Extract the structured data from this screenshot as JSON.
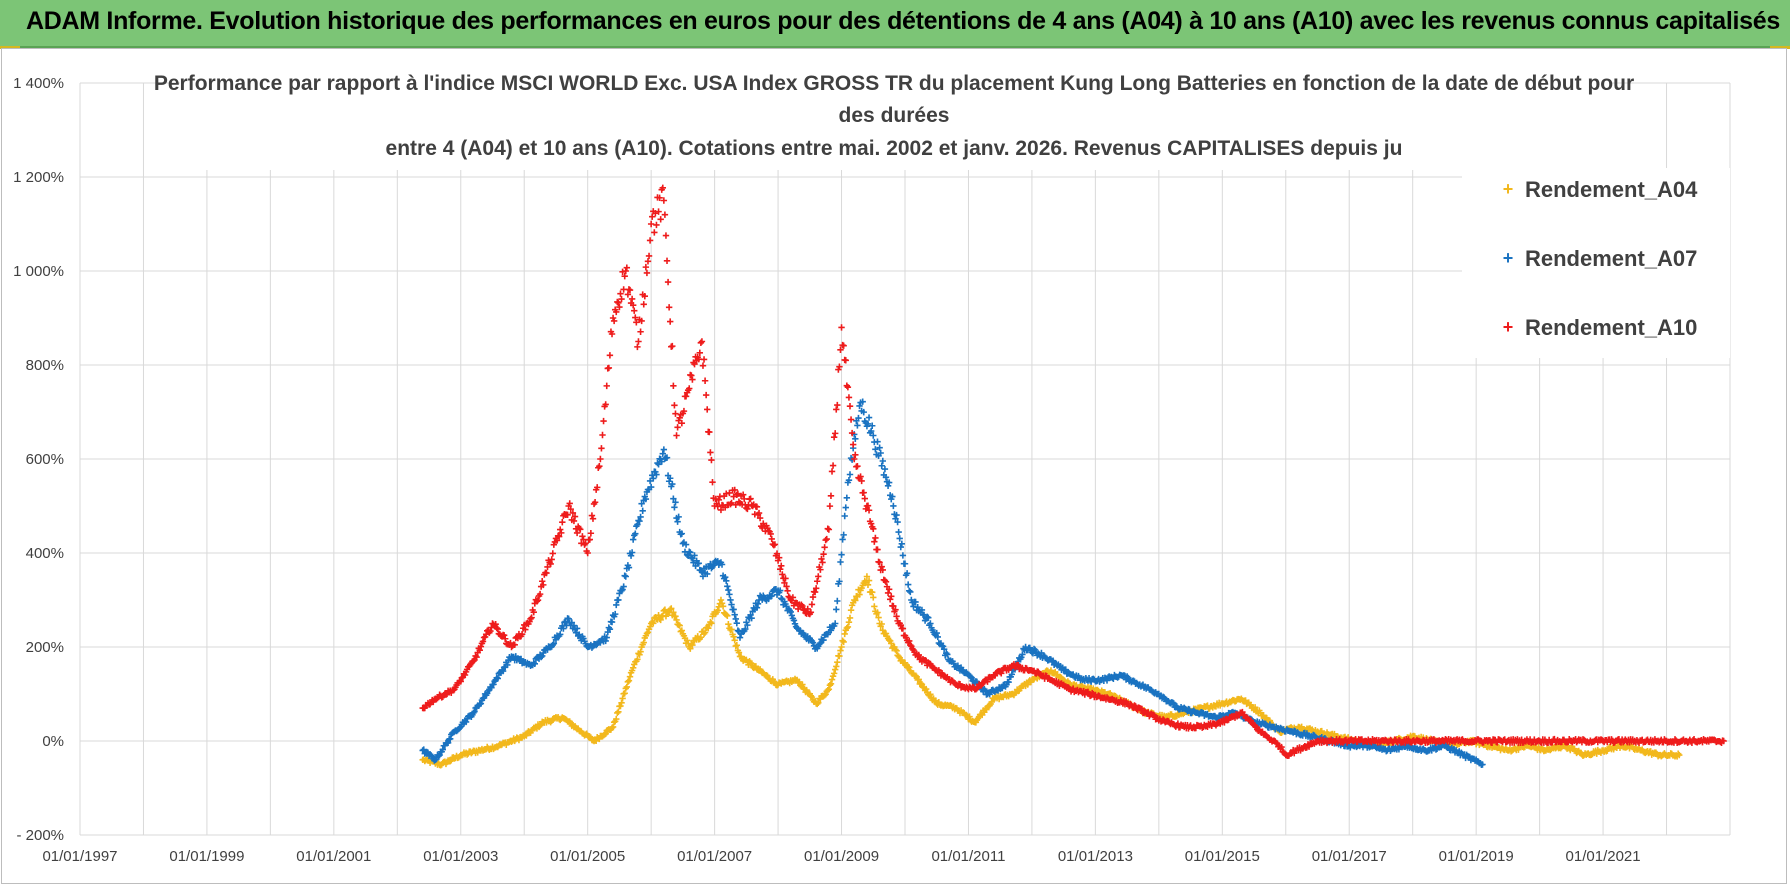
{
  "banner": {
    "title": "ADAM Informe. Evolution historique des performances en euros pour des détentions de 4 ans (A04) à 10 ans (A10) avec les revenus connus capitalisés"
  },
  "colors": {
    "banner_bg": "#7cc576",
    "A04": "#f2b81d",
    "A07": "#1a73c1",
    "A10": "#ee1c1c",
    "grid": "#d9d9d9"
  },
  "chart_data": {
    "type": "scatter",
    "title_lines": [
      "Performance par rapport à l'indice MSCI WORLD Exc. USA Index GROSS TR  du placement Kung Long Batteries  en fonction de la date de début pour",
      "des durées",
      "entre 4 (A04) et 10 ans (A10). Cotations entre mai. 2002 et janv. 2026. Revenus CAPITALISES depuis ju"
    ],
    "xlabel": "",
    "ylabel": "",
    "x_range": [
      "1997-01-01",
      "2023-01-01"
    ],
    "ylim": [
      -200,
      1400
    ],
    "y_ticks": [
      {
        "value": -200,
        "label": "- 200%"
      },
      {
        "value": 0,
        "label": "0%"
      },
      {
        "value": 200,
        "label": "200%"
      },
      {
        "value": 400,
        "label": "400%"
      },
      {
        "value": 600,
        "label": "600%"
      },
      {
        "value": 800,
        "label": "800%"
      },
      {
        "value": 1000,
        "label": "1 000%"
      },
      {
        "value": 1200,
        "label": "1 200%"
      },
      {
        "value": 1400,
        "label": "1 400%"
      }
    ],
    "x_ticks": [
      {
        "value": 1997,
        "label": "01/01/1997"
      },
      {
        "value": 1999,
        "label": "01/01/1999"
      },
      {
        "value": 2001,
        "label": "01/01/2001"
      },
      {
        "value": 2003,
        "label": "01/01/2003"
      },
      {
        "value": 2005,
        "label": "01/01/2005"
      },
      {
        "value": 2007,
        "label": "01/01/2007"
      },
      {
        "value": 2009,
        "label": "01/01/2009"
      },
      {
        "value": 2011,
        "label": "01/01/2011"
      },
      {
        "value": 2013,
        "label": "01/01/2013"
      },
      {
        "value": 2015,
        "label": "01/01/2015"
      },
      {
        "value": 2017,
        "label": "01/01/2017"
      },
      {
        "value": 2019,
        "label": "01/01/2019"
      },
      {
        "value": 2021,
        "label": "01/01/2021"
      }
    ],
    "x_minor_gridlines": [
      1998,
      2000,
      2002,
      2004,
      2006,
      2008,
      2010,
      2012,
      2014,
      2016,
      2018,
      2020,
      2022
    ],
    "legend_position": "top-right",
    "series": [
      {
        "name": "Rendement_A04",
        "color": "#f2b81d",
        "x": [
          2002.4,
          2002.7,
          2003.0,
          2003.3,
          2003.6,
          2004.0,
          2004.3,
          2004.6,
          2004.9,
          2005.1,
          2005.4,
          2005.7,
          2006.0,
          2006.3,
          2006.6,
          2006.9,
          2007.1,
          2007.4,
          2007.7,
          2008.0,
          2008.3,
          2008.6,
          2008.8,
          2009.0,
          2009.2,
          2009.4,
          2009.6,
          2009.9,
          2010.2,
          2010.5,
          2010.8,
          2011.1,
          2011.4,
          2011.7,
          2012.0,
          2012.3,
          2012.6,
          2012.9,
          2013.2,
          2013.5,
          2013.8,
          2014.1,
          2014.4,
          2014.7,
          2015.0,
          2015.3,
          2015.6,
          2015.9,
          2016.2,
          2016.5,
          2016.8,
          2017.1,
          2017.4,
          2017.7,
          2018.0,
          2018.3,
          2018.6,
          2018.9,
          2019.2,
          2019.5,
          2019.8,
          2020.1,
          2020.4,
          2020.7,
          2021.0,
          2021.3,
          2021.6,
          2021.9,
          2022.2
        ],
        "y": [
          -40,
          -50,
          -30,
          -20,
          -10,
          10,
          40,
          50,
          20,
          0,
          30,
          150,
          250,
          280,
          200,
          240,
          300,
          180,
          150,
          120,
          130,
          80,
          110,
          200,
          300,
          350,
          250,
          180,
          130,
          80,
          70,
          40,
          90,
          100,
          130,
          150,
          120,
          110,
          100,
          80,
          60,
          50,
          60,
          70,
          80,
          90,
          60,
          20,
          30,
          20,
          10,
          0,
          -10,
          0,
          10,
          0,
          -10,
          0,
          -10,
          -20,
          -10,
          -20,
          -10,
          -30,
          -20,
          -10,
          -20,
          -30,
          -30
        ]
      },
      {
        "name": "Rendement_A07",
        "color": "#1a73c1",
        "x": [
          2002.4,
          2002.6,
          2002.9,
          2003.2,
          2003.5,
          2003.8,
          2004.1,
          2004.4,
          2004.7,
          2005.0,
          2005.3,
          2005.6,
          2005.9,
          2006.2,
          2006.5,
          2006.8,
          2007.1,
          2007.4,
          2007.7,
          2008.0,
          2008.3,
          2008.6,
          2008.9,
          2009.1,
          2009.3,
          2009.5,
          2009.8,
          2010.1,
          2010.4,
          2010.7,
          2011.0,
          2011.3,
          2011.6,
          2011.9,
          2012.2,
          2012.5,
          2012.8,
          2013.1,
          2013.4,
          2013.7,
          2014.0,
          2014.3,
          2014.6,
          2014.9,
          2015.2,
          2015.5,
          2015.8,
          2016.1,
          2016.4,
          2016.7,
          2017.0,
          2017.3,
          2017.6,
          2017.9,
          2018.2,
          2018.5,
          2018.8,
          2019.1
        ],
        "y": [
          -20,
          -40,
          20,
          60,
          120,
          180,
          160,
          200,
          260,
          200,
          220,
          350,
          520,
          620,
          420,
          360,
          380,
          220,
          300,
          320,
          240,
          200,
          250,
          550,
          720,
          650,
          520,
          300,
          250,
          170,
          140,
          100,
          120,
          200,
          180,
          150,
          130,
          130,
          140,
          120,
          100,
          70,
          60,
          50,
          60,
          40,
          30,
          20,
          10,
          0,
          -10,
          -10,
          -20,
          -10,
          -20,
          -10,
          -30,
          -50
        ]
      },
      {
        "name": "Rendement_A10",
        "color": "#ee1c1c",
        "x": [
          2002.4,
          2002.6,
          2002.9,
          2003.2,
          2003.5,
          2003.8,
          2004.1,
          2004.4,
          2004.7,
          2005.0,
          2005.2,
          2005.4,
          2005.6,
          2005.8,
          2006.0,
          2006.2,
          2006.4,
          2006.6,
          2006.8,
          2007.0,
          2007.3,
          2007.6,
          2007.9,
          2008.2,
          2008.5,
          2008.8,
          2009.0,
          2009.2,
          2009.4,
          2009.6,
          2009.9,
          2010.2,
          2010.5,
          2010.8,
          2011.1,
          2011.4,
          2011.7,
          2012.0,
          2012.3,
          2012.6,
          2012.9,
          2013.2,
          2013.5,
          2013.8,
          2014.1,
          2014.4,
          2014.7,
          2015.0,
          2015.3,
          2015.6,
          2015.9,
          2016.0,
          2016.5,
          2017.0,
          2017.5,
          2018.0,
          2018.5,
          2019.0,
          2019.5,
          2020.0,
          2020.5,
          2021.0,
          2021.5,
          2022.0,
          2022.5,
          2022.9
        ],
        "y": [
          70,
          90,
          110,
          170,
          250,
          200,
          260,
          380,
          500,
          400,
          600,
          900,
          1000,
          850,
          1100,
          1150,
          650,
          750,
          850,
          500,
          520,
          500,
          430,
          300,
          270,
          450,
          880,
          600,
          500,
          380,
          250,
          180,
          150,
          120,
          110,
          140,
          160,
          150,
          130,
          110,
          100,
          90,
          80,
          60,
          40,
          30,
          30,
          40,
          60,
          20,
          -10,
          -30,
          0,
          0,
          0,
          0,
          0,
          0,
          0,
          0,
          0,
          0,
          0,
          0,
          0,
          0
        ]
      }
    ]
  }
}
